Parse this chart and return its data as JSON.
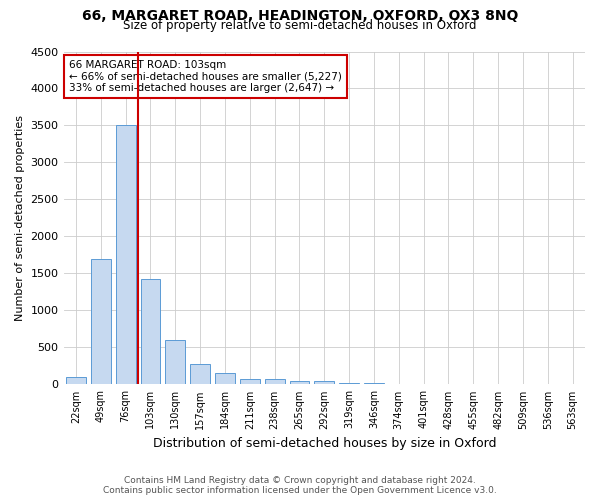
{
  "title": "66, MARGARET ROAD, HEADINGTON, OXFORD, OX3 8NQ",
  "subtitle": "Size of property relative to semi-detached houses in Oxford",
  "xlabel": "Distribution of semi-detached houses by size in Oxford",
  "ylabel": "Number of semi-detached properties",
  "footnote1": "Contains HM Land Registry data © Crown copyright and database right 2024.",
  "footnote2": "Contains public sector information licensed under the Open Government Licence v3.0.",
  "annotation_line1": "66 MARGARET ROAD: 103sqm",
  "annotation_line2": "← 66% of semi-detached houses are smaller (5,227)",
  "annotation_line3": "33% of semi-detached houses are larger (2,647) →",
  "property_bin_index": 3,
  "categories": [
    "22sqm",
    "49sqm",
    "76sqm",
    "103sqm",
    "130sqm",
    "157sqm",
    "184sqm",
    "211sqm",
    "238sqm",
    "265sqm",
    "292sqm",
    "319sqm",
    "346sqm",
    "374sqm",
    "401sqm",
    "428sqm",
    "455sqm",
    "482sqm",
    "509sqm",
    "536sqm",
    "563sqm"
  ],
  "values": [
    100,
    1700,
    3500,
    1420,
    600,
    280,
    150,
    80,
    70,
    50,
    40,
    20,
    15,
    10,
    8,
    5,
    4,
    3,
    2,
    2,
    1
  ],
  "bar_color": "#c6d9f0",
  "bar_edge_color": "#5b9bd5",
  "red_line_color": "#cc0000",
  "ylim": [
    0,
    4500
  ],
  "yticks": [
    0,
    500,
    1000,
    1500,
    2000,
    2500,
    3000,
    3500,
    4000,
    4500
  ],
  "background_color": "#ffffff",
  "grid_color": "#cccccc"
}
